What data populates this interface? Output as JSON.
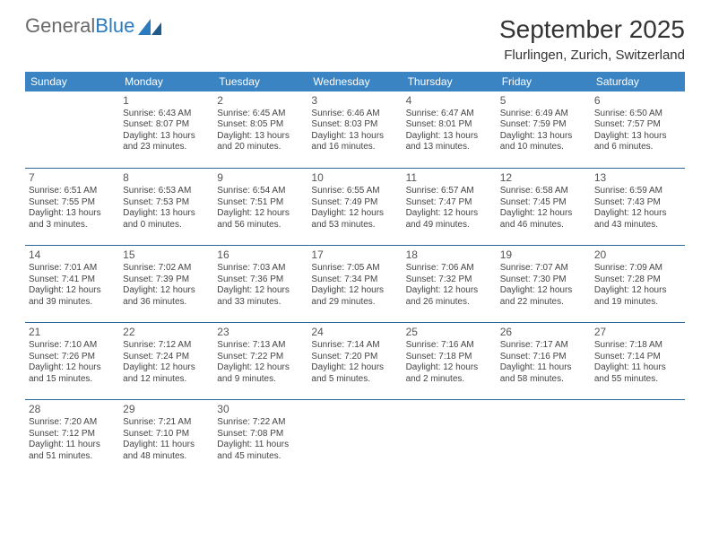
{
  "logo": {
    "text1": "General",
    "text2": "Blue"
  },
  "title": "September 2025",
  "location": "Flurlingen, Zurich, Switzerland",
  "header_color": "#3a84c4",
  "divider_color": "#2a679b",
  "weekdays": [
    "Sunday",
    "Monday",
    "Tuesday",
    "Wednesday",
    "Thursday",
    "Friday",
    "Saturday"
  ],
  "weeks": [
    [
      {
        "day": "",
        "lines": []
      },
      {
        "day": "1",
        "lines": [
          "Sunrise: 6:43 AM",
          "Sunset: 8:07 PM",
          "Daylight: 13 hours and 23 minutes."
        ]
      },
      {
        "day": "2",
        "lines": [
          "Sunrise: 6:45 AM",
          "Sunset: 8:05 PM",
          "Daylight: 13 hours and 20 minutes."
        ]
      },
      {
        "day": "3",
        "lines": [
          "Sunrise: 6:46 AM",
          "Sunset: 8:03 PM",
          "Daylight: 13 hours and 16 minutes."
        ]
      },
      {
        "day": "4",
        "lines": [
          "Sunrise: 6:47 AM",
          "Sunset: 8:01 PM",
          "Daylight: 13 hours and 13 minutes."
        ]
      },
      {
        "day": "5",
        "lines": [
          "Sunrise: 6:49 AM",
          "Sunset: 7:59 PM",
          "Daylight: 13 hours and 10 minutes."
        ]
      },
      {
        "day": "6",
        "lines": [
          "Sunrise: 6:50 AM",
          "Sunset: 7:57 PM",
          "Daylight: 13 hours and 6 minutes."
        ]
      }
    ],
    [
      {
        "day": "7",
        "lines": [
          "Sunrise: 6:51 AM",
          "Sunset: 7:55 PM",
          "Daylight: 13 hours and 3 minutes."
        ]
      },
      {
        "day": "8",
        "lines": [
          "Sunrise: 6:53 AM",
          "Sunset: 7:53 PM",
          "Daylight: 13 hours and 0 minutes."
        ]
      },
      {
        "day": "9",
        "lines": [
          "Sunrise: 6:54 AM",
          "Sunset: 7:51 PM",
          "Daylight: 12 hours and 56 minutes."
        ]
      },
      {
        "day": "10",
        "lines": [
          "Sunrise: 6:55 AM",
          "Sunset: 7:49 PM",
          "Daylight: 12 hours and 53 minutes."
        ]
      },
      {
        "day": "11",
        "lines": [
          "Sunrise: 6:57 AM",
          "Sunset: 7:47 PM",
          "Daylight: 12 hours and 49 minutes."
        ]
      },
      {
        "day": "12",
        "lines": [
          "Sunrise: 6:58 AM",
          "Sunset: 7:45 PM",
          "Daylight: 12 hours and 46 minutes."
        ]
      },
      {
        "day": "13",
        "lines": [
          "Sunrise: 6:59 AM",
          "Sunset: 7:43 PM",
          "Daylight: 12 hours and 43 minutes."
        ]
      }
    ],
    [
      {
        "day": "14",
        "lines": [
          "Sunrise: 7:01 AM",
          "Sunset: 7:41 PM",
          "Daylight: 12 hours and 39 minutes."
        ]
      },
      {
        "day": "15",
        "lines": [
          "Sunrise: 7:02 AM",
          "Sunset: 7:39 PM",
          "Daylight: 12 hours and 36 minutes."
        ]
      },
      {
        "day": "16",
        "lines": [
          "Sunrise: 7:03 AM",
          "Sunset: 7:36 PM",
          "Daylight: 12 hours and 33 minutes."
        ]
      },
      {
        "day": "17",
        "lines": [
          "Sunrise: 7:05 AM",
          "Sunset: 7:34 PM",
          "Daylight: 12 hours and 29 minutes."
        ]
      },
      {
        "day": "18",
        "lines": [
          "Sunrise: 7:06 AM",
          "Sunset: 7:32 PM",
          "Daylight: 12 hours and 26 minutes."
        ]
      },
      {
        "day": "19",
        "lines": [
          "Sunrise: 7:07 AM",
          "Sunset: 7:30 PM",
          "Daylight: 12 hours and 22 minutes."
        ]
      },
      {
        "day": "20",
        "lines": [
          "Sunrise: 7:09 AM",
          "Sunset: 7:28 PM",
          "Daylight: 12 hours and 19 minutes."
        ]
      }
    ],
    [
      {
        "day": "21",
        "lines": [
          "Sunrise: 7:10 AM",
          "Sunset: 7:26 PM",
          "Daylight: 12 hours and 15 minutes."
        ]
      },
      {
        "day": "22",
        "lines": [
          "Sunrise: 7:12 AM",
          "Sunset: 7:24 PM",
          "Daylight: 12 hours and 12 minutes."
        ]
      },
      {
        "day": "23",
        "lines": [
          "Sunrise: 7:13 AM",
          "Sunset: 7:22 PM",
          "Daylight: 12 hours and 9 minutes."
        ]
      },
      {
        "day": "24",
        "lines": [
          "Sunrise: 7:14 AM",
          "Sunset: 7:20 PM",
          "Daylight: 12 hours and 5 minutes."
        ]
      },
      {
        "day": "25",
        "lines": [
          "Sunrise: 7:16 AM",
          "Sunset: 7:18 PM",
          "Daylight: 12 hours and 2 minutes."
        ]
      },
      {
        "day": "26",
        "lines": [
          "Sunrise: 7:17 AM",
          "Sunset: 7:16 PM",
          "Daylight: 11 hours and 58 minutes."
        ]
      },
      {
        "day": "27",
        "lines": [
          "Sunrise: 7:18 AM",
          "Sunset: 7:14 PM",
          "Daylight: 11 hours and 55 minutes."
        ]
      }
    ],
    [
      {
        "day": "28",
        "lines": [
          "Sunrise: 7:20 AM",
          "Sunset: 7:12 PM",
          "Daylight: 11 hours and 51 minutes."
        ]
      },
      {
        "day": "29",
        "lines": [
          "Sunrise: 7:21 AM",
          "Sunset: 7:10 PM",
          "Daylight: 11 hours and 48 minutes."
        ]
      },
      {
        "day": "30",
        "lines": [
          "Sunrise: 7:22 AM",
          "Sunset: 7:08 PM",
          "Daylight: 11 hours and 45 minutes."
        ]
      },
      {
        "day": "",
        "lines": []
      },
      {
        "day": "",
        "lines": []
      },
      {
        "day": "",
        "lines": []
      },
      {
        "day": "",
        "lines": []
      }
    ]
  ]
}
